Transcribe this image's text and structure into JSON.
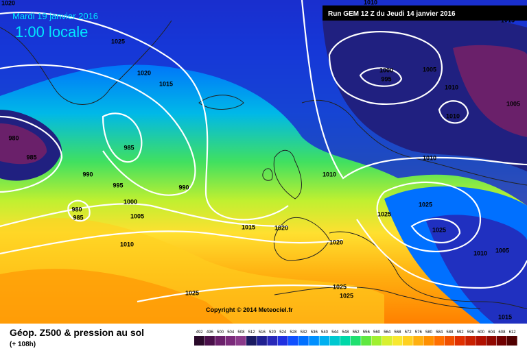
{
  "header": {
    "date": "Mardi 19 janvier 2016",
    "time": "1:00 locale",
    "run": "Run GEM 12 Z du Jeudi 14 janvier 2016"
  },
  "copyright": "Copyright © 2014 Meteociel.fr",
  "footer": {
    "title": "Géop. Z500 & pression au sol",
    "lead": "(+ 108h)"
  },
  "isobar_labels": [
    "1020",
    "1025",
    "1020",
    "1015",
    "980",
    "985",
    "985",
    "990",
    "995",
    "990",
    "1000",
    "980",
    "985",
    "1005",
    "1010",
    "1015",
    "1020",
    "1020",
    "1010",
    "1025",
    "1025",
    "1025",
    "1010",
    "1005",
    "1025",
    "1025",
    "1025",
    "1000",
    "995",
    "1005",
    "1010",
    "1010",
    "1005",
    "1010",
    "1010",
    "1015",
    "1015"
  ],
  "scale": {
    "labels": [
      "492",
      "496",
      "500",
      "504",
      "508",
      "512",
      "516",
      "520",
      "524",
      "528",
      "532",
      "536",
      "540",
      "544",
      "548",
      "552",
      "556",
      "560",
      "564",
      "568",
      "572",
      "576",
      "580",
      "584",
      "588",
      "592",
      "596",
      "600",
      "604",
      "608",
      "612"
    ],
    "colors": [
      "#2a0a2a",
      "#4a104a",
      "#6a206a",
      "#7a2a7a",
      "#8a3a8a",
      "#1a1a60",
      "#202090",
      "#2828b8",
      "#2030e0",
      "#1050ff",
      "#0070ff",
      "#0090ff",
      "#00b0f0",
      "#00c8d0",
      "#00d8a8",
      "#20e070",
      "#60e840",
      "#a0f030",
      "#d8f030",
      "#f8e830",
      "#ffd020",
      "#ffb010",
      "#ff9000",
      "#ff7000",
      "#f05000",
      "#e03000",
      "#c82000",
      "#b01000",
      "#900800",
      "#700000",
      "#500000"
    ]
  }
}
